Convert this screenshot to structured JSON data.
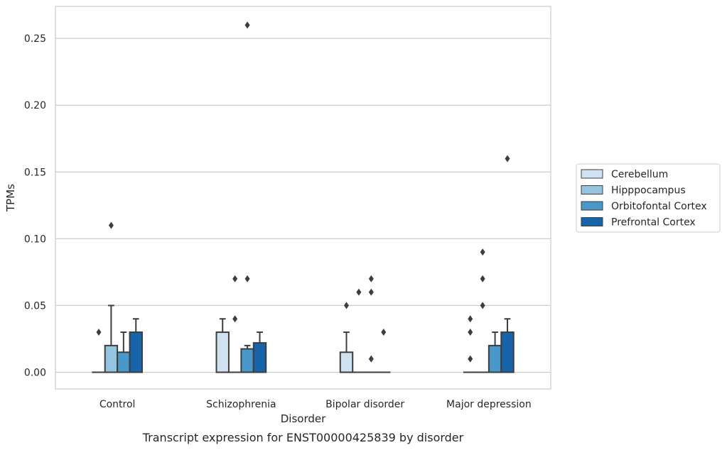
{
  "caption": "Transcript expression for ENST00000425839 by disorder",
  "chart_data": {
    "type": "box",
    "xlabel": "Disorder",
    "ylabel": "TPMs",
    "ylim": [
      -0.0125,
      0.274
    ],
    "yticks": [
      "0.00",
      "0.05",
      "0.10",
      "0.15",
      "0.20",
      "0.25"
    ],
    "categories": [
      "Control",
      "Schizophrenia",
      "Bipolar disorder",
      "Major depression"
    ],
    "grid": true,
    "legend_position": "right",
    "series": [
      {
        "name": "Cerebellum",
        "color": "#d0e1f2",
        "boxes": [
          {
            "q1": 0,
            "median": 0,
            "q3": 0,
            "whislo": 0,
            "whishi": 0,
            "fliers": [
              0.03
            ]
          },
          {
            "q1": 0,
            "median": 0,
            "q3": 0.03,
            "whislo": 0,
            "whishi": 0.04,
            "fliers": []
          },
          {
            "q1": 0,
            "median": 0,
            "q3": 0.015,
            "whislo": 0,
            "whishi": 0.03,
            "fliers": [
              0.05
            ]
          },
          {
            "q1": 0,
            "median": 0,
            "q3": 0,
            "whislo": 0,
            "whishi": 0,
            "fliers": [
              0.01,
              0.03,
              0.04
            ]
          }
        ]
      },
      {
        "name": "Hipppocampus",
        "color": "#94c4df",
        "boxes": [
          {
            "q1": 0,
            "median": 0,
            "q3": 0.02,
            "whislo": 0,
            "whishi": 0.05,
            "fliers": [
              0.11
            ]
          },
          {
            "q1": 0,
            "median": 0,
            "q3": 0,
            "whislo": 0,
            "whishi": 0,
            "fliers": [
              0.04,
              0.07
            ]
          },
          {
            "q1": 0,
            "median": 0,
            "q3": 0,
            "whislo": 0,
            "whishi": 0,
            "fliers": [
              0.06
            ]
          },
          {
            "q1": 0,
            "median": 0,
            "q3": 0,
            "whislo": 0,
            "whishi": 0,
            "fliers": [
              0.05,
              0.07,
              0.09
            ]
          }
        ]
      },
      {
        "name": "Orbitofontal Cortex",
        "color": "#4a98c9",
        "boxes": [
          {
            "q1": 0,
            "median": 0,
            "q3": 0.015,
            "whislo": 0,
            "whishi": 0.03,
            "fliers": []
          },
          {
            "q1": 0,
            "median": 0,
            "q3": 0.0175,
            "whislo": 0,
            "whishi": 0.02,
            "fliers": [
              0.07,
              0.26
            ]
          },
          {
            "q1": 0,
            "median": 0,
            "q3": 0,
            "whislo": 0,
            "whishi": 0,
            "fliers": [
              0.01,
              0.06,
              0.07
            ]
          },
          {
            "q1": 0,
            "median": 0,
            "q3": 0.02,
            "whislo": 0,
            "whishi": 0.03,
            "fliers": []
          }
        ]
      },
      {
        "name": "Prefrontal Cortex",
        "color": "#1764ab",
        "boxes": [
          {
            "q1": 0,
            "median": 0,
            "q3": 0.03,
            "whislo": 0,
            "whishi": 0.04,
            "fliers": []
          },
          {
            "q1": 0,
            "median": 0,
            "q3": 0.022,
            "whislo": 0,
            "whishi": 0.03,
            "fliers": []
          },
          {
            "q1": 0,
            "median": 0,
            "q3": 0,
            "whislo": 0,
            "whishi": 0,
            "fliers": [
              0.03
            ]
          },
          {
            "q1": 0,
            "median": 0,
            "q3": 0.03,
            "whislo": 0,
            "whishi": 0.04,
            "fliers": [
              0.16
            ]
          }
        ]
      }
    ]
  }
}
